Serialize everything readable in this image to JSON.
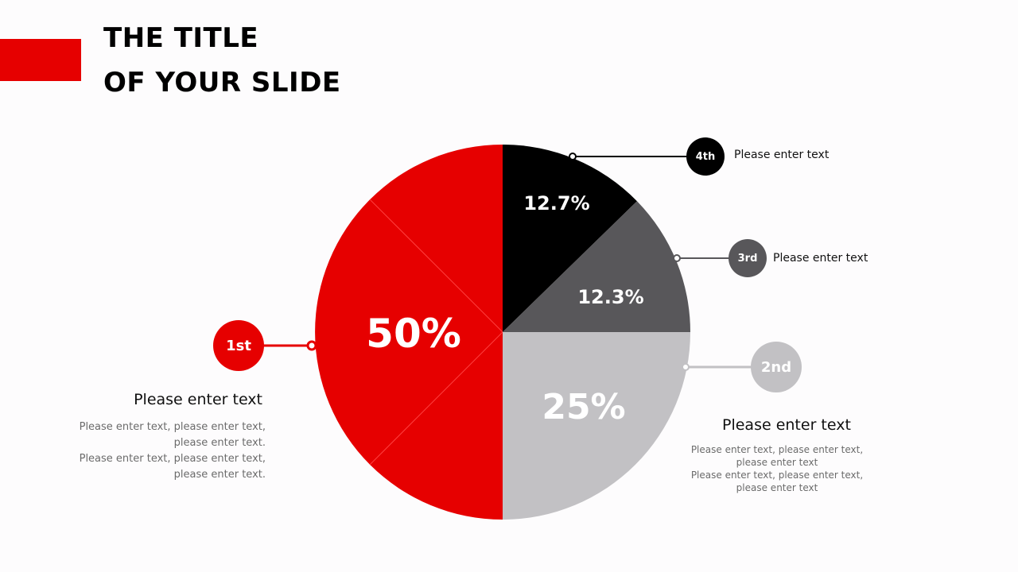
{
  "title": {
    "line1": "THE TITLE",
    "line2": "OF YOUR SLIDE"
  },
  "colors": {
    "red": "#e60000",
    "black": "#000000",
    "dark_grey": "#58575a",
    "light_grey": "#c2c1c4"
  },
  "chart_data": {
    "type": "pie",
    "start": "top",
    "direction": "clockwise",
    "slices": [
      {
        "rank": "4th",
        "value": 12.7,
        "label": "12.7%",
        "color": "#000000"
      },
      {
        "rank": "3rd",
        "value": 12.3,
        "label": "12.3%",
        "color": "#58575a"
      },
      {
        "rank": "2nd",
        "value": 25,
        "label": "25%",
        "color": "#c2c1c4"
      },
      {
        "rank": "1st",
        "value": 50,
        "label": "50%",
        "color": "#e60000"
      }
    ]
  },
  "callouts": {
    "first": {
      "badge": "1st",
      "heading": "Please enter text",
      "body": [
        "Please enter text, please enter text,",
        "please enter text.",
        "Please enter text, please enter text,",
        "please enter text."
      ]
    },
    "second": {
      "badge": "2nd",
      "heading": "Please enter text",
      "body": [
        "Please enter text, please enter text,",
        "please enter text",
        "Please enter text, please enter text,",
        "please enter text"
      ]
    },
    "third": {
      "badge": "3rd",
      "text": "Please enter text"
    },
    "fourth": {
      "badge": "4th",
      "text": "Please enter text"
    }
  }
}
